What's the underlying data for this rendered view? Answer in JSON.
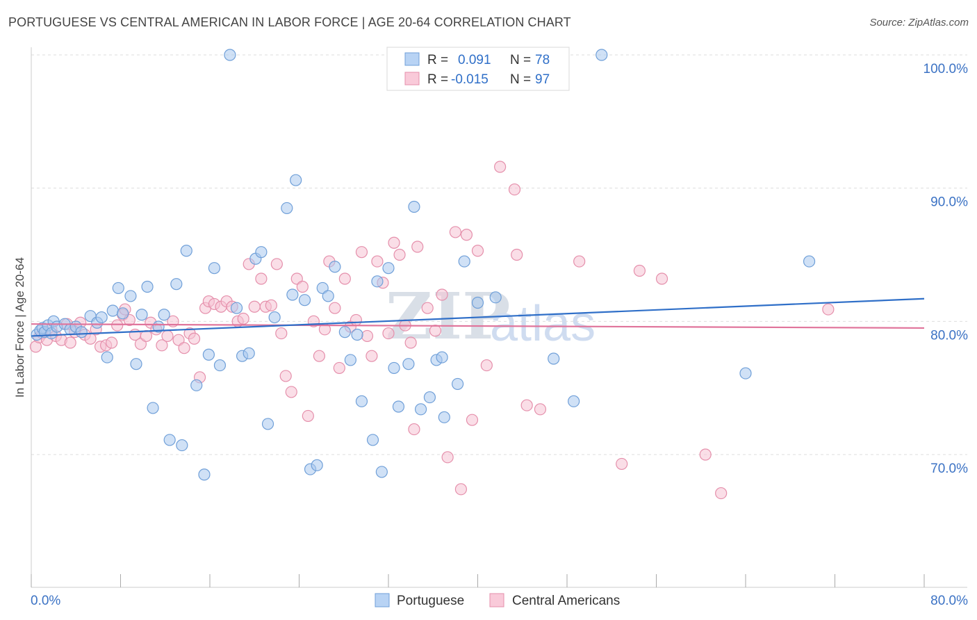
{
  "title": "PORTUGUESE VS CENTRAL AMERICAN IN LABOR FORCE | AGE 20-64 CORRELATION CHART",
  "source": "Source: ZipAtlas.com",
  "watermark": {
    "zip": "ZIP",
    "atlas": "atlas"
  },
  "colors": {
    "blue_fill": "#a9c8ef",
    "blue_stroke": "#6f9fd8",
    "blue_line": "#2f6fc8",
    "pink_fill": "#f6c3d3",
    "pink_stroke": "#e58fab",
    "pink_line": "#e0749b",
    "tick_text": "#3b72c4",
    "grid": "#dddddd"
  },
  "legend": {
    "rows": [
      {
        "r_label": "R =",
        "r_value": "0.091",
        "n_label": "N =",
        "n_value": "78"
      },
      {
        "r_label": "R =",
        "r_value": "-0.015",
        "n_label": "N =",
        "n_value": "97"
      }
    ]
  },
  "bottom_legend": [
    "Portuguese",
    "Central Americans"
  ],
  "chart_data": {
    "type": "scatter",
    "title": "PORTUGUESE VS CENTRAL AMERICAN IN LABOR FORCE | AGE 20-64 CORRELATION CHART",
    "xlabel": "",
    "ylabel": "In Labor Force | Age 20-64",
    "xlim": [
      0,
      80
    ],
    "ylim": [
      60,
      101
    ],
    "x_tick_labels": [
      "0.0%",
      "80.0%"
    ],
    "y_ticks": [
      70,
      80,
      90,
      100
    ],
    "y_tick_labels": [
      "70.0%",
      "80.0%",
      "90.0%",
      "100.0%"
    ],
    "grid": true,
    "legend_position": "top-center",
    "series": [
      {
        "name": "Portuguese",
        "r": 0.091,
        "n": 78,
        "trend": {
          "x": [
            0,
            80
          ],
          "y": [
            78.9,
            81.7
          ]
        },
        "points": [
          [
            0.5,
            79.0
          ],
          [
            0.8,
            79.3
          ],
          [
            1.0,
            79.5
          ],
          [
            1.2,
            79.2
          ],
          [
            1.5,
            79.7
          ],
          [
            1.8,
            79.1
          ],
          [
            2.0,
            80.0
          ],
          [
            2.3,
            79.6
          ],
          [
            3.0,
            79.8
          ],
          [
            3.5,
            79.4
          ],
          [
            4.0,
            79.6
          ],
          [
            4.5,
            79.2
          ],
          [
            5.3,
            80.4
          ],
          [
            5.9,
            79.9
          ],
          [
            6.3,
            80.3
          ],
          [
            6.8,
            77.3
          ],
          [
            7.3,
            80.8
          ],
          [
            7.8,
            82.5
          ],
          [
            8.2,
            80.6
          ],
          [
            8.9,
            81.9
          ],
          [
            9.4,
            76.8
          ],
          [
            9.9,
            80.5
          ],
          [
            10.4,
            82.6
          ],
          [
            10.9,
            73.5
          ],
          [
            11.4,
            79.6
          ],
          [
            11.9,
            80.5
          ],
          [
            12.4,
            71.1
          ],
          [
            13.0,
            82.8
          ],
          [
            13.5,
            70.7
          ],
          [
            13.9,
            85.3
          ],
          [
            14.8,
            75.2
          ],
          [
            15.5,
            68.5
          ],
          [
            15.9,
            77.5
          ],
          [
            16.4,
            84.0
          ],
          [
            16.9,
            76.7
          ],
          [
            17.8,
            100.0
          ],
          [
            18.4,
            81.0
          ],
          [
            18.9,
            77.4
          ],
          [
            19.5,
            77.6
          ],
          [
            20.1,
            84.7
          ],
          [
            20.6,
            85.2
          ],
          [
            21.2,
            72.3
          ],
          [
            21.8,
            80.3
          ],
          [
            22.9,
            88.5
          ],
          [
            23.4,
            82.0
          ],
          [
            23.7,
            90.6
          ],
          [
            24.5,
            81.6
          ],
          [
            25.0,
            68.9
          ],
          [
            25.6,
            69.2
          ],
          [
            26.1,
            82.5
          ],
          [
            26.6,
            81.9
          ],
          [
            27.2,
            84.1
          ],
          [
            28.1,
            79.2
          ],
          [
            28.6,
            77.1
          ],
          [
            29.2,
            79.0
          ],
          [
            29.6,
            74.0
          ],
          [
            30.6,
            71.1
          ],
          [
            31.0,
            83.0
          ],
          [
            31.4,
            68.7
          ],
          [
            32.0,
            84.0
          ],
          [
            32.5,
            76.5
          ],
          [
            32.9,
            73.6
          ],
          [
            33.8,
            76.8
          ],
          [
            34.3,
            88.6
          ],
          [
            34.9,
            73.4
          ],
          [
            35.7,
            74.3
          ],
          [
            36.3,
            77.1
          ],
          [
            36.8,
            77.3
          ],
          [
            37.0,
            72.8
          ],
          [
            38.2,
            75.3
          ],
          [
            38.8,
            84.5
          ],
          [
            40.0,
            81.4
          ],
          [
            41.6,
            81.8
          ],
          [
            46.8,
            77.2
          ],
          [
            48.6,
            74.0
          ],
          [
            51.1,
            100.0
          ],
          [
            64.0,
            76.1
          ],
          [
            69.7,
            84.5
          ]
        ]
      },
      {
        "name": "Central Americans",
        "r": -0.015,
        "n": 97,
        "trend": {
          "x": [
            0,
            80
          ],
          "y": [
            79.8,
            79.5
          ]
        },
        "points": [
          [
            0.4,
            78.1
          ],
          [
            0.7,
            78.8
          ],
          [
            1.0,
            79.1
          ],
          [
            1.4,
            78.6
          ],
          [
            1.8,
            79.4
          ],
          [
            2.2,
            78.9
          ],
          [
            2.7,
            78.6
          ],
          [
            3.2,
            79.8
          ],
          [
            3.5,
            78.4
          ],
          [
            3.9,
            79.2
          ],
          [
            4.4,
            79.9
          ],
          [
            4.8,
            79.0
          ],
          [
            5.3,
            78.7
          ],
          [
            5.8,
            79.4
          ],
          [
            6.2,
            78.1
          ],
          [
            6.7,
            78.2
          ],
          [
            7.2,
            78.4
          ],
          [
            7.7,
            79.7
          ],
          [
            8.2,
            80.5
          ],
          [
            8.4,
            80.9
          ],
          [
            8.8,
            80.1
          ],
          [
            9.3,
            79.0
          ],
          [
            9.8,
            78.3
          ],
          [
            10.3,
            78.9
          ],
          [
            10.7,
            79.9
          ],
          [
            11.2,
            79.4
          ],
          [
            11.7,
            78.2
          ],
          [
            12.2,
            78.9
          ],
          [
            12.7,
            80.0
          ],
          [
            13.2,
            78.6
          ],
          [
            13.7,
            78.0
          ],
          [
            14.2,
            79.1
          ],
          [
            14.6,
            78.7
          ],
          [
            15.1,
            75.8
          ],
          [
            15.6,
            81.0
          ],
          [
            15.9,
            81.5
          ],
          [
            16.4,
            81.3
          ],
          [
            17.0,
            81.1
          ],
          [
            17.5,
            81.5
          ],
          [
            18.0,
            81.1
          ],
          [
            18.5,
            80.0
          ],
          [
            19.0,
            80.2
          ],
          [
            19.5,
            84.3
          ],
          [
            20.0,
            81.1
          ],
          [
            20.6,
            83.2
          ],
          [
            21.0,
            81.1
          ],
          [
            21.5,
            81.2
          ],
          [
            22.0,
            84.3
          ],
          [
            22.4,
            79.1
          ],
          [
            22.8,
            75.9
          ],
          [
            23.3,
            74.7
          ],
          [
            23.8,
            83.2
          ],
          [
            24.3,
            82.6
          ],
          [
            24.8,
            72.9
          ],
          [
            25.3,
            80.0
          ],
          [
            25.8,
            77.4
          ],
          [
            26.3,
            79.4
          ],
          [
            26.7,
            84.5
          ],
          [
            27.2,
            81.0
          ],
          [
            27.6,
            76.5
          ],
          [
            28.1,
            83.2
          ],
          [
            28.6,
            79.6
          ],
          [
            29.1,
            80.1
          ],
          [
            29.6,
            85.2
          ],
          [
            30.1,
            78.9
          ],
          [
            30.5,
            77.4
          ],
          [
            31.0,
            84.5
          ],
          [
            31.5,
            82.9
          ],
          [
            32.0,
            79.1
          ],
          [
            32.5,
            85.9
          ],
          [
            33.0,
            85.0
          ],
          [
            33.5,
            79.7
          ],
          [
            34.0,
            78.4
          ],
          [
            34.3,
            71.9
          ],
          [
            34.6,
            85.6
          ],
          [
            35.5,
            81.0
          ],
          [
            36.2,
            79.3
          ],
          [
            36.8,
            82.0
          ],
          [
            37.3,
            69.8
          ],
          [
            38.0,
            86.7
          ],
          [
            38.5,
            67.4
          ],
          [
            39.0,
            86.5
          ],
          [
            39.5,
            72.6
          ],
          [
            40.0,
            85.3
          ],
          [
            40.8,
            76.7
          ],
          [
            42.0,
            91.6
          ],
          [
            43.5,
            85.0
          ],
          [
            44.4,
            73.7
          ],
          [
            45.6,
            73.4
          ],
          [
            49.1,
            84.5
          ],
          [
            52.9,
            69.3
          ],
          [
            54.5,
            83.8
          ],
          [
            56.5,
            83.2
          ],
          [
            60.4,
            70.0
          ],
          [
            61.8,
            67.1
          ],
          [
            71.4,
            80.9
          ],
          [
            43.3,
            89.9
          ]
        ]
      }
    ]
  }
}
